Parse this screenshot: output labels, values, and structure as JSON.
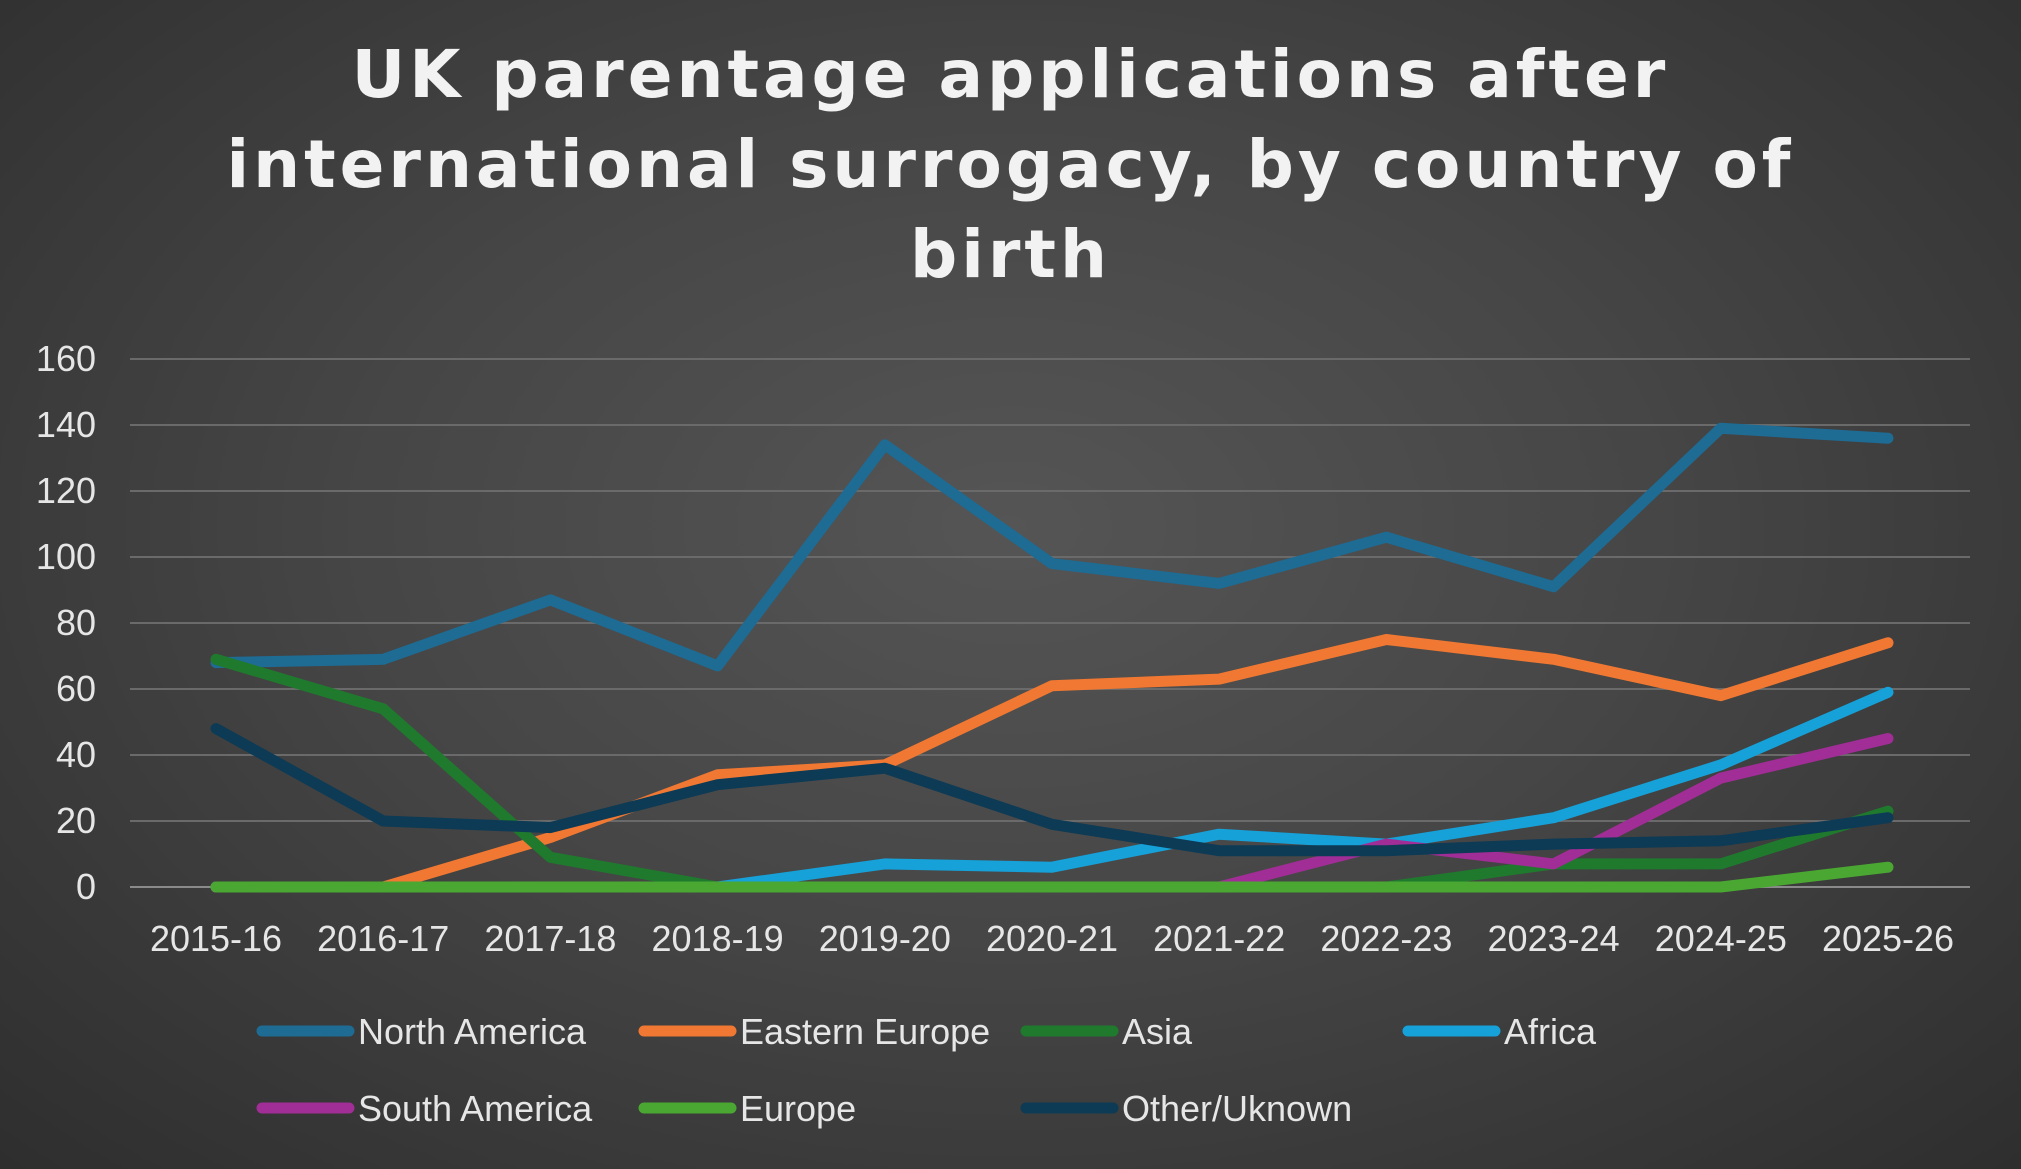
{
  "chart_data": {
    "type": "line",
    "title_lines": [
      "UK parentage applications after",
      "international surrogacy, by country of",
      "birth"
    ],
    "xlabel": "",
    "ylabel": "",
    "categories": [
      "2015-16",
      "2016-17",
      "2017-18",
      "2018-19",
      "2019-20",
      "2020-21",
      "2021-22",
      "2022-23",
      "2023-24",
      "2024-25",
      "2025-26"
    ],
    "ylim": [
      0,
      160
    ],
    "yticks": [
      "0",
      "20",
      "40",
      "60",
      "80",
      "100",
      "120",
      "140",
      "160"
    ],
    "grid": true,
    "legend_position": "bottom",
    "series": [
      {
        "name": "North America",
        "color": "#1e6b94",
        "values": [
          68,
          69,
          87,
          67,
          134,
          98,
          92,
          106,
          91,
          139,
          136
        ]
      },
      {
        "name": "Eastern Europe",
        "color": "#f07832",
        "values": [
          0,
          0,
          15,
          34,
          37,
          61,
          63,
          75,
          69,
          58,
          74
        ]
      },
      {
        "name": "Asia",
        "color": "#1f7a2e",
        "values": [
          69,
          54,
          9,
          0,
          0,
          0,
          0,
          0,
          7,
          7,
          23
        ]
      },
      {
        "name": "Africa",
        "color": "#16a1d9",
        "values": [
          0,
          0,
          0,
          0,
          7,
          6,
          16,
          13,
          21,
          37,
          59
        ]
      },
      {
        "name": "South America",
        "color": "#a12d96",
        "values": [
          0,
          0,
          0,
          0,
          0,
          0,
          0,
          13,
          7,
          33,
          45
        ]
      },
      {
        "name": "Europe",
        "color": "#4aa832",
        "values": [
          0,
          0,
          0,
          0,
          0,
          0,
          0,
          0,
          0,
          0,
          6
        ]
      },
      {
        "name": "Other/Uknown",
        "color": "#0d3a55",
        "values": [
          48,
          20,
          18,
          31,
          36,
          19,
          11,
          11,
          13,
          14,
          21
        ]
      }
    ]
  }
}
